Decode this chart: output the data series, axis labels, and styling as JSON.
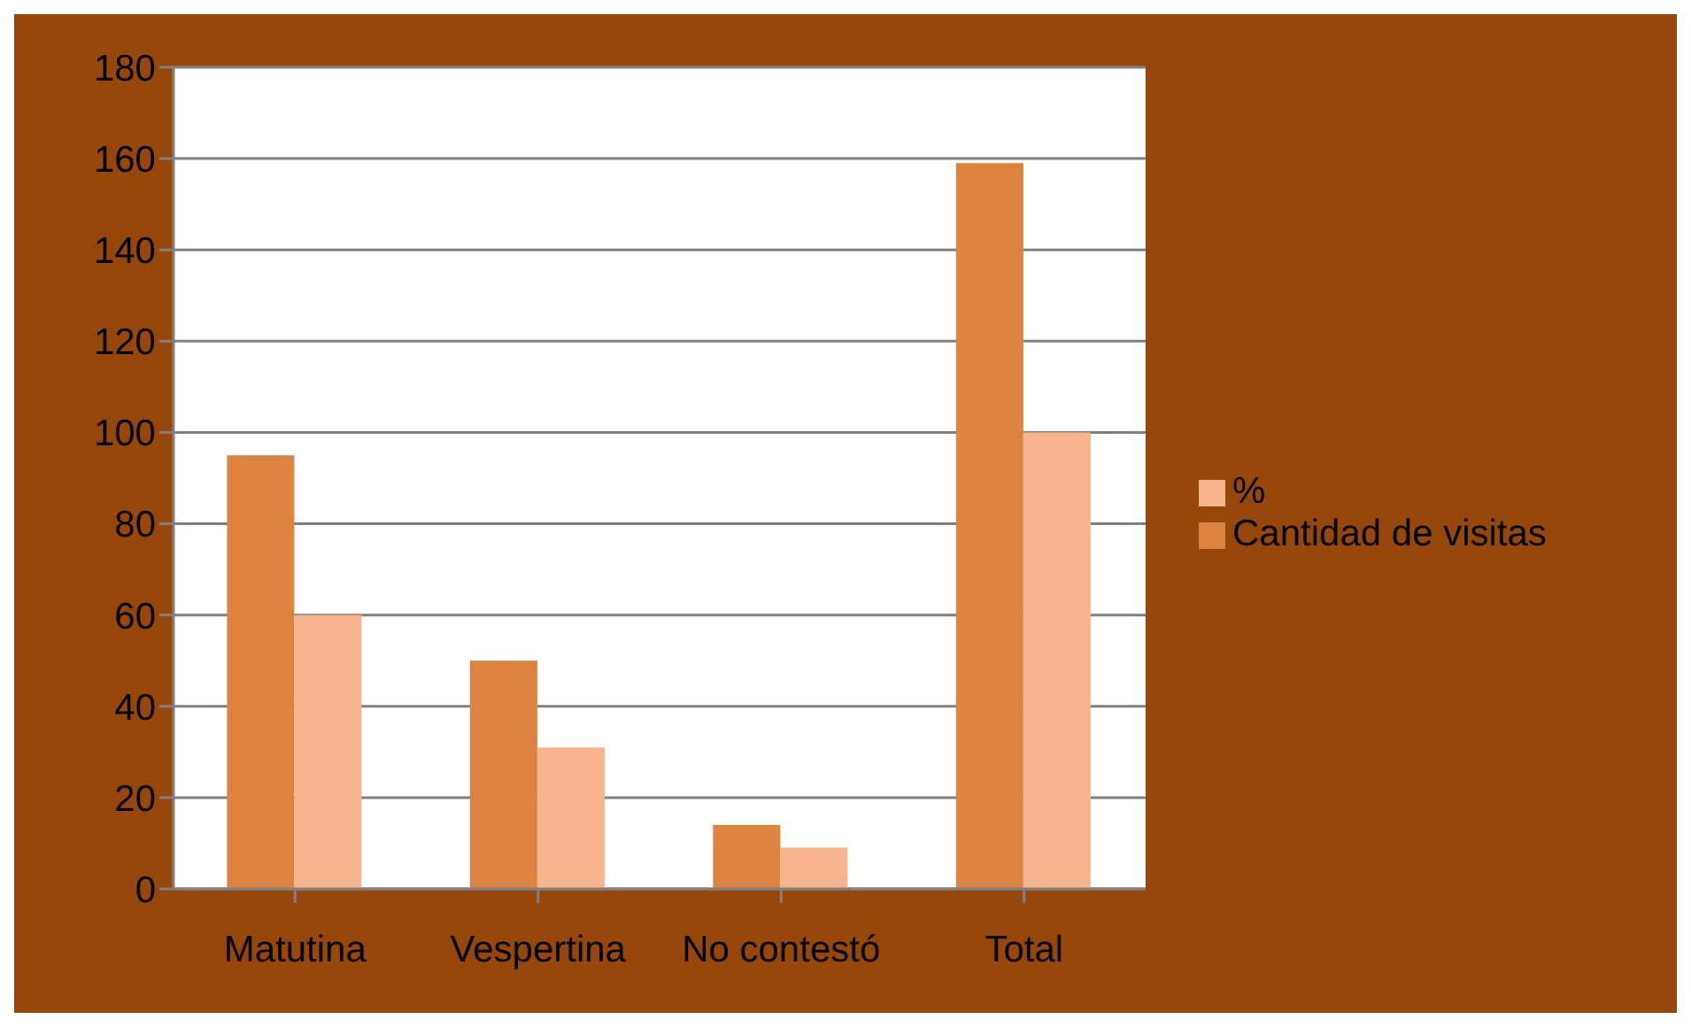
{
  "chart_data": {
    "type": "bar",
    "categories": [
      "Matutina",
      "Vespertina",
      "No contestó",
      "Total"
    ],
    "series": [
      {
        "name": "Cantidad de visitas",
        "color": "#dc8340",
        "values": [
          95,
          50,
          14,
          159
        ]
      },
      {
        "name": "%",
        "color": "#f8b48e",
        "values": [
          60,
          31,
          9,
          100
        ]
      }
    ],
    "ylim": [
      0,
      180
    ],
    "yticks": [
      0,
      20,
      40,
      60,
      80,
      100,
      120,
      140,
      160,
      180
    ],
    "grid": "y",
    "legend": "right"
  }
}
